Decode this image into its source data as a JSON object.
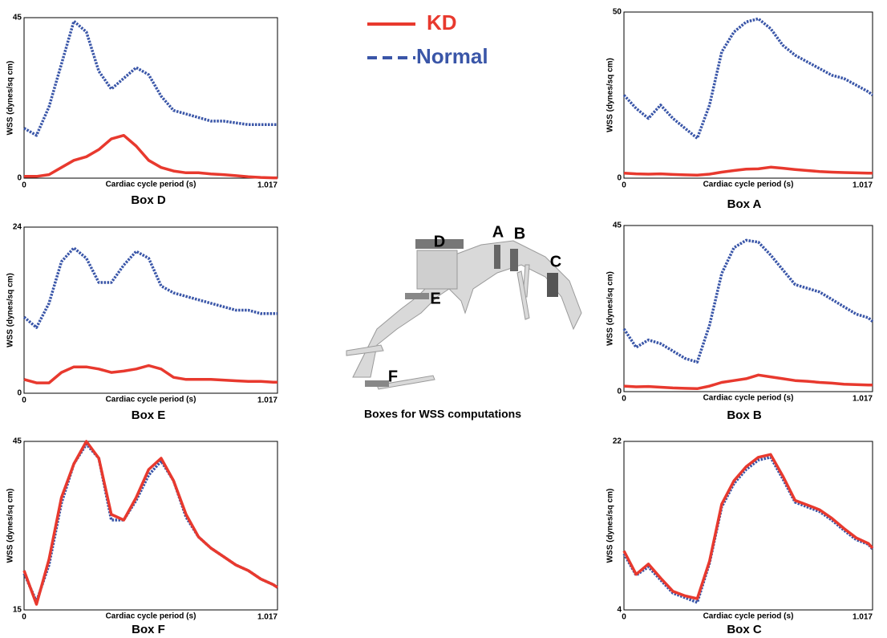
{
  "chart_data": [
    {
      "type": "line",
      "title": "Box D",
      "xlabel": "Cardiac cycle period (s)",
      "ylabel": "WSS (dynes/sq cm)",
      "x": [
        0,
        0.05,
        0.1,
        0.15,
        0.2,
        0.25,
        0.3,
        0.35,
        0.4,
        0.45,
        0.5,
        0.55,
        0.6,
        0.65,
        0.7,
        0.75,
        0.8,
        0.85,
        0.9,
        0.95,
        1.0,
        1.017
      ],
      "xlim": [
        0,
        1.017
      ],
      "xticks": [
        0,
        1.017
      ],
      "ylim": [
        0,
        45
      ],
      "yticks": [
        0,
        45
      ],
      "series": [
        {
          "name": "KD",
          "color": "#e8392e",
          "line_style": "solid",
          "values": [
            0.5,
            0.5,
            1,
            3,
            5,
            6,
            8,
            11,
            12,
            9,
            5,
            3,
            2,
            1.5,
            1.5,
            1.2,
            1,
            0.7,
            0.4,
            0.2,
            0.1,
            0.1
          ]
        },
        {
          "name": "Normal",
          "color": "#3a56a8",
          "line_style": "dotted",
          "values": [
            14,
            12,
            20,
            32,
            44,
            41,
            30,
            25,
            28,
            31,
            29,
            23,
            19,
            18,
            17,
            16,
            16,
            15.5,
            15,
            15,
            15,
            15
          ]
        }
      ]
    },
    {
      "type": "line",
      "title": "Box A",
      "xlabel": "Cardiac cycle period (s)",
      "ylabel": "WSS (dynes/sq cm)",
      "x": [
        0,
        0.05,
        0.1,
        0.15,
        0.2,
        0.25,
        0.3,
        0.35,
        0.4,
        0.45,
        0.5,
        0.55,
        0.6,
        0.65,
        0.7,
        0.75,
        0.8,
        0.85,
        0.9,
        0.95,
        1.0,
        1.017
      ],
      "xlim": [
        0,
        1.017
      ],
      "xticks": [
        0,
        1.017
      ],
      "ylim": [
        0,
        50
      ],
      "yticks": [
        0,
        50
      ],
      "series": [
        {
          "name": "KD",
          "color": "#e8392e",
          "line_style": "solid",
          "values": [
            1.5,
            1.3,
            1.2,
            1.3,
            1.1,
            1,
            0.9,
            1.2,
            1.8,
            2.3,
            2.7,
            2.8,
            3.3,
            3,
            2.6,
            2.3,
            2,
            1.8,
            1.7,
            1.6,
            1.5,
            1.5
          ]
        },
        {
          "name": "Normal",
          "color": "#3a56a8",
          "line_style": "dotted",
          "values": [
            25,
            21,
            18,
            22,
            18,
            15,
            12,
            22,
            38,
            44,
            47,
            48,
            45,
            40,
            37,
            35,
            33,
            31,
            30,
            28,
            26,
            25
          ]
        }
      ]
    },
    {
      "type": "line",
      "title": "Box E",
      "xlabel": "Cardiac cycle period (s)",
      "ylabel": "WSS (dynes/sq cm)",
      "x": [
        0,
        0.05,
        0.1,
        0.15,
        0.2,
        0.25,
        0.3,
        0.35,
        0.4,
        0.45,
        0.5,
        0.55,
        0.6,
        0.65,
        0.7,
        0.75,
        0.8,
        0.85,
        0.9,
        0.95,
        1.0,
        1.017
      ],
      "xlim": [
        0,
        1.017
      ],
      "xticks": [
        0,
        1.017
      ],
      "ylim": [
        0,
        24
      ],
      "yticks": [
        0,
        24
      ],
      "series": [
        {
          "name": "KD",
          "color": "#e8392e",
          "line_style": "solid",
          "values": [
            2,
            1.5,
            1.5,
            3,
            3.8,
            3.8,
            3.5,
            3,
            3.2,
            3.5,
            4,
            3.5,
            2.3,
            2,
            2,
            2,
            1.9,
            1.8,
            1.7,
            1.7,
            1.6,
            1.6
          ]
        },
        {
          "name": "Normal",
          "color": "#3a56a8",
          "line_style": "dotted",
          "values": [
            11,
            9.5,
            13,
            19,
            21,
            19.5,
            16,
            16,
            18.5,
            20.5,
            19.5,
            15.5,
            14.5,
            14,
            13.5,
            13,
            12.5,
            12,
            12,
            11.5,
            11.5,
            11.5
          ]
        }
      ]
    },
    {
      "type": "line",
      "title": "Box B",
      "xlabel": "Cardiac cycle period (s)",
      "ylabel": "WSS (dynes/sq cm)",
      "x": [
        0,
        0.05,
        0.1,
        0.15,
        0.2,
        0.25,
        0.3,
        0.35,
        0.4,
        0.45,
        0.5,
        0.55,
        0.6,
        0.65,
        0.7,
        0.75,
        0.8,
        0.85,
        0.9,
        0.95,
        1.0,
        1.017
      ],
      "xlim": [
        0,
        1.017
      ],
      "xticks": [
        0,
        1.017
      ],
      "ylim": [
        0,
        45
      ],
      "yticks": [
        0,
        45
      ],
      "series": [
        {
          "name": "KD",
          "color": "#e8392e",
          "line_style": "solid",
          "values": [
            1.5,
            1.3,
            1.4,
            1.2,
            1,
            0.9,
            0.8,
            1.5,
            2.5,
            3,
            3.5,
            4.5,
            4,
            3.5,
            3,
            2.8,
            2.5,
            2.3,
            2,
            1.9,
            1.8,
            1.8
          ]
        },
        {
          "name": "Normal",
          "color": "#3a56a8",
          "line_style": "dotted",
          "values": [
            17,
            12,
            14,
            13,
            11,
            9,
            8,
            18,
            32,
            39,
            41,
            40.5,
            37,
            33,
            29,
            28,
            27,
            25,
            23,
            21,
            20,
            19
          ]
        }
      ]
    },
    {
      "type": "line",
      "title": "Box F",
      "xlabel": "Cardiac cycle period (s)",
      "ylabel": "WSS (dynes/sq cm)",
      "x": [
        0,
        0.05,
        0.1,
        0.15,
        0.2,
        0.25,
        0.3,
        0.35,
        0.4,
        0.45,
        0.5,
        0.55,
        0.6,
        0.65,
        0.7,
        0.75,
        0.8,
        0.85,
        0.9,
        0.95,
        1.0,
        1.017
      ],
      "xlim": [
        0,
        1.017
      ],
      "xticks": [
        0,
        1.017
      ],
      "ylim": [
        15,
        45
      ],
      "yticks": [
        15,
        45
      ],
      "series": [
        {
          "name": "KD",
          "color": "#e8392e",
          "line_style": "solid",
          "values": [
            22,
            16,
            24,
            35,
            41,
            45,
            42,
            32,
            31,
            35,
            40,
            42,
            38,
            32,
            28,
            26,
            24.5,
            23,
            22,
            20.5,
            19.5,
            19
          ]
        },
        {
          "name": "Normal",
          "color": "#3a56a8",
          "line_style": "dotted",
          "values": [
            21.5,
            16.5,
            23,
            34,
            41,
            44.5,
            42,
            31,
            31,
            34.5,
            39,
            41.5,
            38,
            31.5,
            28,
            26,
            24.5,
            23,
            22,
            20.5,
            19.5,
            19
          ]
        }
      ]
    },
    {
      "type": "line",
      "title": "Box C",
      "xlabel": "Cardiac cycle period (s)",
      "ylabel": "WSS (dynes/sq cm)",
      "x": [
        0,
        0.05,
        0.1,
        0.15,
        0.2,
        0.25,
        0.3,
        0.35,
        0.4,
        0.45,
        0.5,
        0.55,
        0.6,
        0.65,
        0.7,
        0.75,
        0.8,
        0.85,
        0.9,
        0.95,
        1.0,
        1.017
      ],
      "xlim": [
        0,
        1.017
      ],
      "xticks": [
        0,
        1.017
      ],
      "ylim": [
        4,
        22
      ],
      "yticks": [
        4,
        22
      ],
      "series": [
        {
          "name": "KD",
          "color": "#e8392e",
          "line_style": "solid",
          "values": [
            10.3,
            7.8,
            8.9,
            7.4,
            6,
            5.5,
            5.2,
            9.2,
            15.3,
            17.8,
            19.3,
            20.3,
            20.6,
            18.3,
            15.7,
            15.2,
            14.7,
            13.8,
            12.7,
            11.7,
            11.1,
            10.6
          ]
        },
        {
          "name": "Normal",
          "color": "#3a56a8",
          "line_style": "dotted",
          "values": [
            10,
            7.7,
            8.6,
            7.2,
            5.8,
            5.3,
            4.8,
            9,
            15,
            17.5,
            19,
            20,
            20.3,
            18,
            15.5,
            15,
            14.5,
            13.6,
            12.5,
            11.5,
            11,
            10.5
          ]
        }
      ]
    }
  ],
  "diagram": {
    "caption": "Boxes for WSS computations",
    "labels": [
      "D",
      "A",
      "B",
      "C",
      "E",
      "F"
    ]
  }
}
